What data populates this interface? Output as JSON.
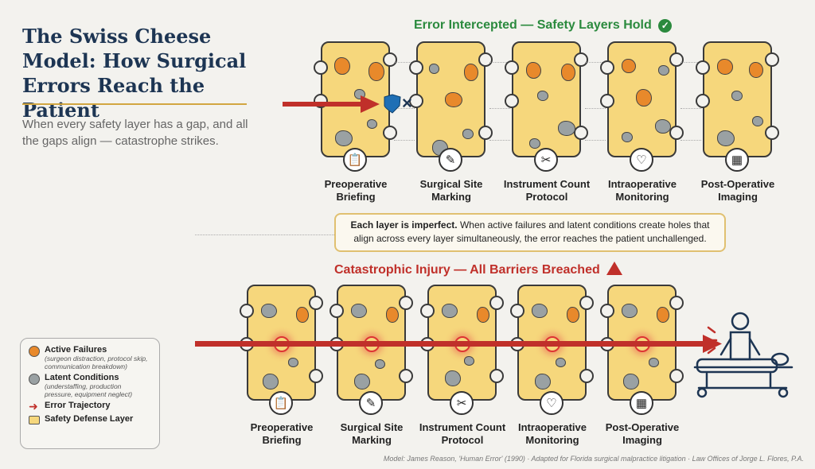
{
  "title": "The Swiss Cheese Model: How Surgical Errors Reach the Patient",
  "subtitle": "When every safety layer has a gap, and all the gaps align — catastrophe strikes.",
  "top_section": {
    "heading": "Error Intercepted — Safety Layers Hold",
    "heading_icon": "check-circle-icon",
    "color": "#2b8a3e",
    "blocked_marker": "×"
  },
  "bottom_section": {
    "heading": "Catastrophic Injury — All Barriers Breached",
    "heading_icon": "warning-triangle-icon",
    "color": "#c0302a"
  },
  "layers": [
    {
      "label": "Preoperative Briefing",
      "bottom_label": "Preoperative Briefing",
      "icon": "clipboard-icon",
      "glyph": "📋"
    },
    {
      "label": "Surgical Site Marking",
      "bottom_label": "Surgical Site Marking",
      "icon": "pen-icon",
      "glyph": "✎"
    },
    {
      "label": "Instrument Count Protocol",
      "bottom_label": "Instrument Count Protocol",
      "icon": "scissors-icon",
      "glyph": "✂"
    },
    {
      "label": "Intraoperative Monitoring",
      "bottom_label": "Intraoperative Monitoring",
      "icon": "heart-monitor-icon",
      "glyph": "♡"
    },
    {
      "label": "Post-Operative Imaging",
      "bottom_label": "Post-Operative Imaging",
      "icon": "xray-icon",
      "glyph": "▦"
    }
  ],
  "callout": {
    "bold": "Each layer is imperfect.",
    "text": " When active failures and latent conditions create holes that align across every layer simultaneously, the error reaches the patient unchallenged."
  },
  "legend": {
    "items": [
      {
        "title": "Active Failures",
        "sub": "(surgeon distraction, protocol skip, communication breakdown)",
        "color": "#e8892b"
      },
      {
        "title": "Latent Conditions",
        "sub": "(understaffing, production pressure, equipment neglect)",
        "color": "#9aa1a3"
      },
      {
        "title": "Error Trajectory",
        "color": "#c0302a"
      },
      {
        "title": "Safety Defense Layer",
        "color": "#f6d77c"
      }
    ]
  },
  "footer": "Model: James Reason, 'Human Error' (1990) · Adapted for Florida surgical malpractice litigation · Law Offices of Jorge L. Flores, P.A."
}
